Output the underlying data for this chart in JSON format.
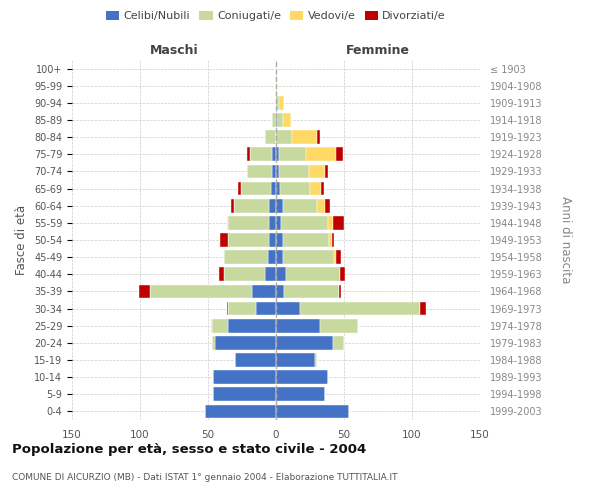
{
  "age_groups": [
    "0-4",
    "5-9",
    "10-14",
    "15-19",
    "20-24",
    "25-29",
    "30-34",
    "35-39",
    "40-44",
    "45-49",
    "50-54",
    "55-59",
    "60-64",
    "65-69",
    "70-74",
    "75-79",
    "80-84",
    "85-89",
    "90-94",
    "95-99",
    "100+"
  ],
  "birth_years": [
    "1999-2003",
    "1994-1998",
    "1989-1993",
    "1984-1988",
    "1979-1983",
    "1974-1978",
    "1969-1973",
    "1964-1968",
    "1959-1963",
    "1954-1958",
    "1949-1953",
    "1944-1948",
    "1939-1943",
    "1934-1938",
    "1929-1933",
    "1924-1928",
    "1919-1923",
    "1914-1918",
    "1909-1913",
    "1904-1908",
    "≤ 1903"
  ],
  "males": {
    "celibe": [
      52,
      46,
      46,
      30,
      45,
      35,
      15,
      18,
      8,
      6,
      5,
      5,
      5,
      4,
      3,
      3,
      0,
      0,
      0,
      0,
      0
    ],
    "coniugato": [
      0,
      0,
      0,
      0,
      2,
      12,
      20,
      75,
      30,
      32,
      30,
      30,
      26,
      22,
      18,
      16,
      8,
      3,
      0,
      0,
      0
    ],
    "vedovo": [
      0,
      0,
      0,
      0,
      0,
      1,
      0,
      0,
      0,
      0,
      0,
      1,
      0,
      0,
      0,
      0,
      0,
      0,
      0,
      0,
      0
    ],
    "divorziato": [
      0,
      0,
      0,
      0,
      0,
      0,
      1,
      8,
      4,
      0,
      6,
      0,
      2,
      2,
      0,
      2,
      0,
      0,
      0,
      0,
      0
    ]
  },
  "females": {
    "nubile": [
      54,
      36,
      38,
      29,
      42,
      32,
      18,
      6,
      7,
      5,
      5,
      4,
      5,
      3,
      2,
      2,
      0,
      1,
      0,
      0,
      0
    ],
    "coniugata": [
      0,
      0,
      0,
      1,
      8,
      28,
      88,
      40,
      40,
      38,
      34,
      34,
      25,
      22,
      22,
      20,
      12,
      4,
      2,
      0,
      0
    ],
    "vedova": [
      0,
      0,
      0,
      0,
      0,
      0,
      0,
      0,
      0,
      1,
      2,
      4,
      6,
      8,
      12,
      22,
      18,
      6,
      4,
      1,
      0
    ],
    "divorziata": [
      0,
      0,
      0,
      0,
      0,
      0,
      4,
      2,
      4,
      4,
      2,
      8,
      4,
      2,
      2,
      5,
      2,
      0,
      0,
      0,
      0
    ]
  },
  "colors": {
    "celibe_nubile": "#4472c4",
    "coniugato": "#c8d9a0",
    "vedovo": "#ffd966",
    "divorziato": "#c00000"
  },
  "xlim": 150,
  "title": "Popolazione per età, sesso e stato civile - 2004",
  "subtitle": "COMUNE DI AICURZIO (MB) - Dati ISTAT 1° gennaio 2004 - Elaborazione TUTTITALIA.IT",
  "ylabel_left": "Fasce di età",
  "ylabel_right": "Anni di nascita",
  "xlabel_left": "Maschi",
  "xlabel_right": "Femmine",
  "background_color": "#ffffff",
  "grid_color": "#cccccc"
}
